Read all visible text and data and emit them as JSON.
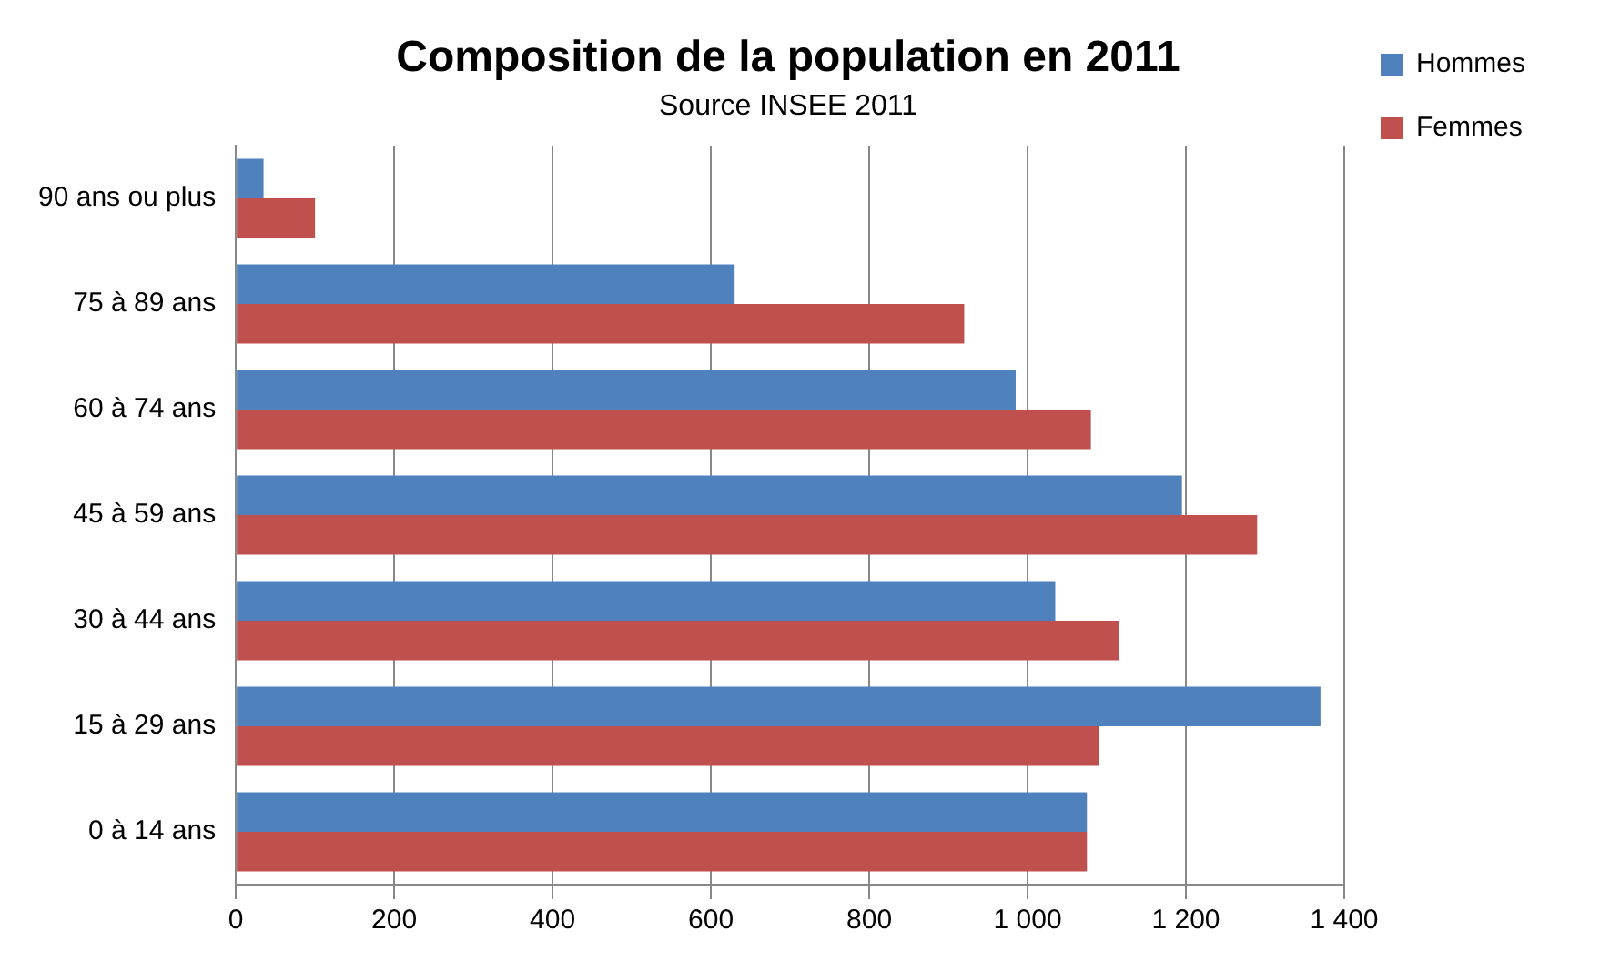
{
  "chart_data": {
    "type": "bar",
    "orientation": "horizontal",
    "title": "Composition de la population en 2011",
    "subtitle": "Source INSEE 2011",
    "categories": [
      "90 ans ou plus",
      "75 à 89 ans",
      "60 à 74 ans",
      "45 à 59 ans",
      "30 à 44 ans",
      "15 à 29 ans",
      "0 à 14 ans"
    ],
    "series": [
      {
        "name": "Hommes",
        "color": "#4f81bd",
        "values": [
          35,
          630,
          985,
          1195,
          1035,
          1370,
          1075
        ]
      },
      {
        "name": "Femmes",
        "color": "#c0504d",
        "values": [
          100,
          920,
          1080,
          1290,
          1115,
          1090,
          1075
        ]
      }
    ],
    "xlim": [
      0,
      1400
    ],
    "xticks": [
      0,
      200,
      400,
      600,
      800,
      {
        "value": 1000,
        "label": "1 000"
      },
      {
        "value": 1200,
        "label": "1 200"
      },
      {
        "value": 1400,
        "label": "1 400"
      }
    ],
    "grid": "x",
    "legend": "top right"
  }
}
